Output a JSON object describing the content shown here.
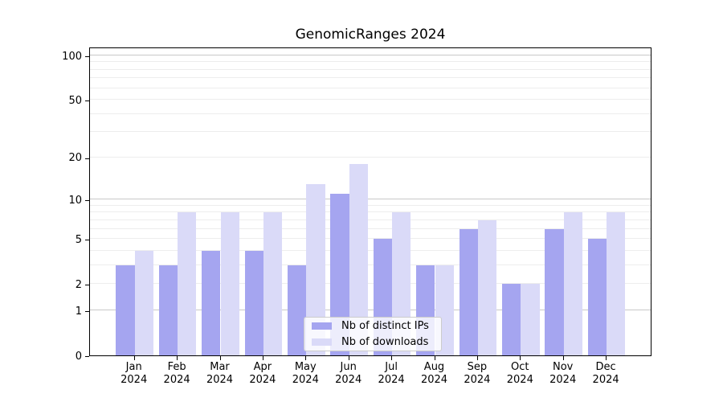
{
  "title": "GenomicRanges 2024",
  "colors": {
    "ips_bar": "#a5a5f0",
    "downloads_bar": "#dadaf8",
    "grid_major": "#c8c8c8",
    "grid_minor": "#ededed",
    "spine": "#000000",
    "legend_border": "#cccccc",
    "legend_background": "rgba(255,255,255,0.8)"
  },
  "legend": {
    "items": [
      {
        "label": "Nb of distinct IPs",
        "series": "ips"
      },
      {
        "label": "Nb of downloads",
        "series": "downloads"
      }
    ]
  },
  "y_axis": {
    "tick_values": [
      0,
      1,
      2,
      5,
      10,
      20,
      50,
      100
    ],
    "major_grid_values": [
      1,
      10,
      100
    ],
    "minor_grid_values": [
      2,
      3,
      4,
      5,
      6,
      7,
      8,
      9,
      20,
      30,
      40,
      50,
      60,
      70,
      80,
      90
    ]
  },
  "x_axis": {
    "year": "2024",
    "months": [
      "Jan",
      "Feb",
      "Mar",
      "Apr",
      "May",
      "Jun",
      "Jul",
      "Aug",
      "Sep",
      "Oct",
      "Nov",
      "Dec"
    ]
  },
  "chart_data": {
    "type": "bar",
    "title": "GenomicRanges 2024",
    "categories": [
      "Jan 2024",
      "Feb 2024",
      "Mar 2024",
      "Apr 2024",
      "May 2024",
      "Jun 2024",
      "Jul 2024",
      "Aug 2024",
      "Sep 2024",
      "Oct 2024",
      "Nov 2024",
      "Dec 2024"
    ],
    "series": [
      {
        "name": "Nb of distinct IPs",
        "values": [
          3,
          3,
          4,
          4,
          3,
          11,
          5,
          3,
          6,
          2,
          6,
          5
        ]
      },
      {
        "name": "Nb of downloads",
        "values": [
          4,
          8,
          8,
          8,
          13,
          18,
          8,
          3,
          7,
          2,
          8,
          8
        ]
      }
    ],
    "ylabel": "",
    "xlabel": "",
    "yscale": "log10(value+1)",
    "ytick_labels": [
      "0",
      "1",
      "2",
      "5",
      "10",
      "20",
      "50",
      "100"
    ],
    "ylim_top_value": 115,
    "grid": "horizontal",
    "legend_position": "lower center"
  }
}
